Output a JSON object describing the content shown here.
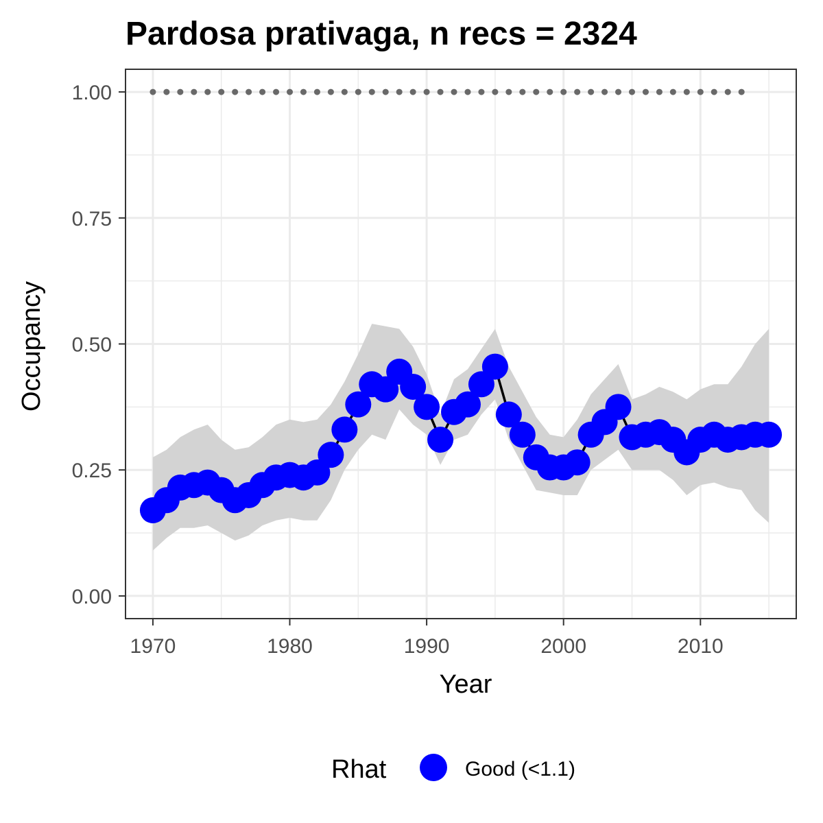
{
  "chart_data": {
    "type": "line",
    "title": "Pardosa prativaga, n recs = 2324",
    "xlabel": "Year",
    "ylabel": "Occupancy",
    "xlim": [
      1968,
      2017
    ],
    "ylim": [
      -0.045,
      1.045
    ],
    "x_ticks": [
      1970,
      1980,
      1990,
      2000,
      2010
    ],
    "x_tick_labels": [
      "1970",
      "1980",
      "1990",
      "2000",
      "2010"
    ],
    "y_ticks": [
      0,
      0.25,
      0.5,
      0.75,
      1
    ],
    "y_tick_labels": [
      "0.00",
      "0.25",
      "0.50",
      "0.75",
      "1.00"
    ],
    "grid": true,
    "legend_position": "bottom",
    "legend": {
      "title": "Rhat",
      "entries": [
        {
          "label": "Good (<1.1)",
          "color": "#0000ff"
        }
      ]
    },
    "colors": {
      "points": "#0000ff",
      "line": "#000000",
      "ribbon": "#d3d3d3",
      "reference": "#696969"
    },
    "series": [
      {
        "type": "ribbon",
        "x": [
          1970,
          1971,
          1972,
          1973,
          1974,
          1975,
          1976,
          1977,
          1978,
          1979,
          1980,
          1981,
          1982,
          1983,
          1984,
          1985,
          1986,
          1987,
          1988,
          1989,
          1990,
          1991,
          1992,
          1993,
          1994,
          1995,
          1996,
          1997,
          1998,
          1999,
          2000,
          2001,
          2002,
          2003,
          2004,
          2005,
          2006,
          2007,
          2008,
          2009,
          2010,
          2011,
          2012,
          2013,
          2014,
          2015
        ],
        "lower": [
          0.09,
          0.115,
          0.135,
          0.135,
          0.14,
          0.125,
          0.11,
          0.12,
          0.14,
          0.15,
          0.155,
          0.15,
          0.15,
          0.19,
          0.25,
          0.29,
          0.32,
          0.31,
          0.37,
          0.34,
          0.32,
          0.26,
          0.31,
          0.32,
          0.36,
          0.39,
          0.31,
          0.26,
          0.21,
          0.205,
          0.2,
          0.2,
          0.25,
          0.27,
          0.29,
          0.25,
          0.25,
          0.25,
          0.23,
          0.2,
          0.22,
          0.225,
          0.215,
          0.21,
          0.17,
          0.145
        ],
        "upper": [
          0.275,
          0.29,
          0.315,
          0.33,
          0.34,
          0.31,
          0.29,
          0.295,
          0.315,
          0.34,
          0.35,
          0.345,
          0.35,
          0.38,
          0.425,
          0.48,
          0.54,
          0.535,
          0.53,
          0.495,
          0.44,
          0.36,
          0.43,
          0.45,
          0.49,
          0.53,
          0.455,
          0.405,
          0.355,
          0.32,
          0.315,
          0.35,
          0.4,
          0.43,
          0.46,
          0.39,
          0.4,
          0.415,
          0.405,
          0.39,
          0.41,
          0.42,
          0.42,
          0.455,
          0.5,
          0.53
        ]
      },
      {
        "type": "line+points",
        "x": [
          1970,
          1971,
          1972,
          1973,
          1974,
          1975,
          1976,
          1977,
          1978,
          1979,
          1980,
          1981,
          1982,
          1983,
          1984,
          1985,
          1986,
          1987,
          1988,
          1989,
          1990,
          1991,
          1992,
          1993,
          1994,
          1995,
          1996,
          1997,
          1998,
          1999,
          2000,
          2001,
          2002,
          2003,
          2004,
          2005,
          2006,
          2007,
          2008,
          2009,
          2010,
          2011,
          2012,
          2013,
          2014,
          2015
        ],
        "y": [
          0.17,
          0.19,
          0.215,
          0.22,
          0.225,
          0.21,
          0.19,
          0.2,
          0.22,
          0.235,
          0.24,
          0.235,
          0.245,
          0.28,
          0.33,
          0.38,
          0.42,
          0.41,
          0.445,
          0.415,
          0.375,
          0.31,
          0.365,
          0.38,
          0.42,
          0.455,
          0.36,
          0.32,
          0.275,
          0.255,
          0.255,
          0.265,
          0.32,
          0.345,
          0.375,
          0.315,
          0.32,
          0.325,
          0.31,
          0.285,
          0.31,
          0.32,
          0.31,
          0.315,
          0.32,
          0.32
        ]
      },
      {
        "type": "reference-points",
        "x": [
          1970,
          1971,
          1972,
          1973,
          1974,
          1975,
          1976,
          1977,
          1978,
          1979,
          1980,
          1981,
          1982,
          1983,
          1984,
          1985,
          1986,
          1987,
          1988,
          1989,
          1990,
          1991,
          1992,
          1993,
          1994,
          1995,
          1996,
          1997,
          1998,
          1999,
          2000,
          2001,
          2002,
          2003,
          2004,
          2005,
          2006,
          2007,
          2008,
          2009,
          2010,
          2011,
          2012,
          2013
        ],
        "y": [
          1,
          1,
          1,
          1,
          1,
          1,
          1,
          1,
          1,
          1,
          1,
          1,
          1,
          1,
          1,
          1,
          1,
          1,
          1,
          1,
          1,
          1,
          1,
          1,
          1,
          1,
          1,
          1,
          1,
          1,
          1,
          1,
          1,
          1,
          1,
          1,
          1,
          1,
          1,
          1,
          1,
          1,
          1,
          1
        ]
      }
    ]
  }
}
